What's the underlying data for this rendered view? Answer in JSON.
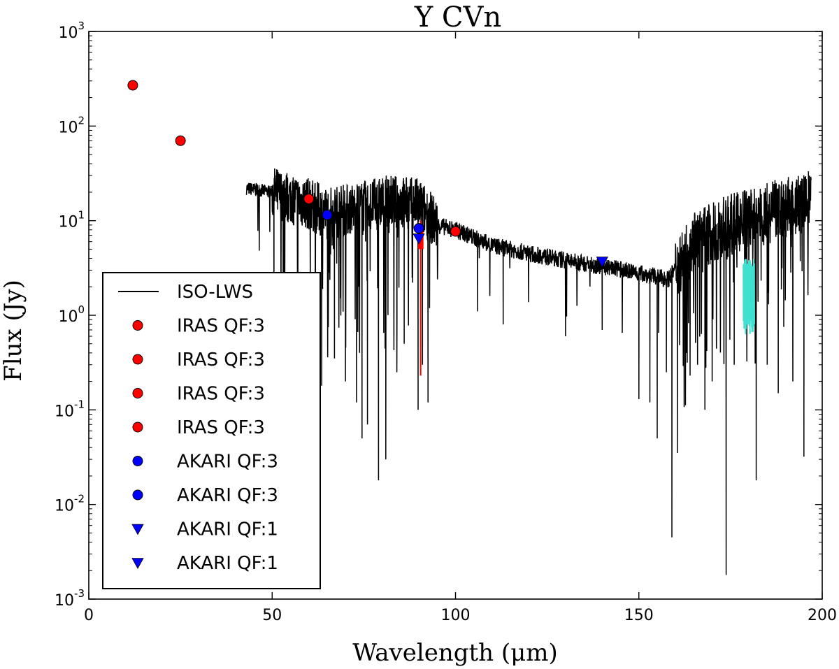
{
  "chart_data": {
    "type": "scatter",
    "title": "Y CVn",
    "xlabel": "Wavelength (μm)",
    "ylabel": "Flux (Jy)",
    "xlim": [
      0,
      200
    ],
    "ylim": [
      0.001,
      1000
    ],
    "yscale": "log",
    "grid": false,
    "legend_position": "lower-left",
    "x_ticks": [
      "0",
      "50",
      "100",
      "150",
      "200"
    ],
    "y_ticks": [
      {
        "base": "10",
        "exp": "-3"
      },
      {
        "base": "10",
        "exp": "-2"
      },
      {
        "base": "10",
        "exp": "-1"
      },
      {
        "base": "10",
        "exp": "0"
      },
      {
        "base": "10",
        "exp": "1"
      },
      {
        "base": "10",
        "exp": "2"
      },
      {
        "base": "10",
        "exp": "3"
      }
    ],
    "colors": {
      "iras": "#ff0000",
      "akari": "#0000ff",
      "spectrum": "#000000",
      "highlight": "#40e0d0"
    },
    "spectrum": {
      "name": "ISO-LWS",
      "x_range": [
        43,
        197
      ],
      "envelope": [
        [
          43,
          22
        ],
        [
          50,
          20
        ],
        [
          60,
          15
        ],
        [
          65,
          12
        ],
        [
          75,
          14
        ],
        [
          82,
          16
        ],
        [
          90,
          15
        ],
        [
          95,
          9
        ],
        [
          100,
          8
        ],
        [
          110,
          5.5
        ],
        [
          120,
          4.5
        ],
        [
          130,
          3.8
        ],
        [
          140,
          3.3
        ],
        [
          150,
          2.8
        ],
        [
          158,
          2.4
        ],
        [
          165,
          6
        ],
        [
          175,
          9
        ],
        [
          185,
          12
        ],
        [
          197,
          16
        ]
      ],
      "dips": [
        {
          "x": 50.5,
          "y": 0.35
        },
        {
          "x": 53,
          "y": 0.5
        },
        {
          "x": 57,
          "y": 0.3
        },
        {
          "x": 63.5,
          "y": 0.18
        },
        {
          "x": 67,
          "y": 0.35
        },
        {
          "x": 70,
          "y": 0.2
        },
        {
          "x": 73,
          "y": 0.12
        },
        {
          "x": 74.5,
          "y": 0.05
        },
        {
          "x": 76,
          "y": 0.07
        },
        {
          "x": 79,
          "y": 0.018
        },
        {
          "x": 81,
          "y": 0.03
        },
        {
          "x": 84,
          "y": 0.25
        },
        {
          "x": 86,
          "y": 0.5
        },
        {
          "x": 89.8,
          "y": 0.1
        },
        {
          "x": 91,
          "y": 0.3
        },
        {
          "x": 92.5,
          "y": 0.12
        },
        {
          "x": 106,
          "y": 1.1
        },
        {
          "x": 113,
          "y": 0.8
        },
        {
          "x": 130,
          "y": 0.6
        },
        {
          "x": 140,
          "y": 0.7
        },
        {
          "x": 150,
          "y": 0.13
        },
        {
          "x": 153,
          "y": 0.12
        },
        {
          "x": 155,
          "y": 0.05
        },
        {
          "x": 157.5,
          "y": 0.25
        },
        {
          "x": 159,
          "y": 0.0045
        },
        {
          "x": 160.5,
          "y": 0.035
        },
        {
          "x": 163,
          "y": 0.4
        },
        {
          "x": 166,
          "y": 0.3
        },
        {
          "x": 168,
          "y": 0.1
        },
        {
          "x": 170,
          "y": 0.2
        },
        {
          "x": 173.8,
          "y": 0.0018
        },
        {
          "x": 176,
          "y": 0.3
        },
        {
          "x": 182,
          "y": 0.018
        },
        {
          "x": 185,
          "y": 0.3
        },
        {
          "x": 188,
          "y": 0.15
        },
        {
          "x": 192,
          "y": 0.2
        },
        {
          "x": 195,
          "y": 0.032
        }
      ],
      "highlight_band": {
        "x": [
          178.5,
          181.5
        ],
        "y": [
          0.3,
          4
        ]
      }
    },
    "series": [
      {
        "name": "IRAS QF:3",
        "marker": "circle",
        "color": "#ff0000",
        "x": 12,
        "y": 270
      },
      {
        "name": "IRAS QF:3",
        "marker": "circle",
        "color": "#ff0000",
        "x": 25,
        "y": 70
      },
      {
        "name": "IRAS QF:3",
        "marker": "circle",
        "color": "#ff0000",
        "x": 60,
        "y": 17
      },
      {
        "name": "IRAS QF:3",
        "marker": "circle",
        "color": "#ff0000",
        "x": 100,
        "y": 7.7
      },
      {
        "name": "AKARI QF:3",
        "marker": "circle",
        "color": "#0000ff",
        "x": 65,
        "y": 11.5
      },
      {
        "name": "AKARI QF:3",
        "marker": "circle",
        "color": "#0000ff",
        "x": 90,
        "y": 8.3
      },
      {
        "name": "AKARI QF:1",
        "marker": "triangle-down",
        "color": "#0000ff",
        "x": 90,
        "y": 6.5
      },
      {
        "name": "AKARI QF:1",
        "marker": "triangle-down",
        "color": "#0000ff",
        "x": 140,
        "y": 3.7
      }
    ],
    "error_bar": {
      "x": 90.5,
      "y_low": 0.23,
      "y_high": 10
    },
    "legend": [
      {
        "label": "ISO-LWS",
        "marker": "line",
        "color": "#000000"
      },
      {
        "label": "IRAS QF:3",
        "marker": "circle",
        "color": "#ff0000"
      },
      {
        "label": "IRAS QF:3",
        "marker": "circle",
        "color": "#ff0000"
      },
      {
        "label": "IRAS QF:3",
        "marker": "circle",
        "color": "#ff0000"
      },
      {
        "label": "IRAS QF:3",
        "marker": "circle",
        "color": "#ff0000"
      },
      {
        "label": "AKARI QF:3",
        "marker": "circle",
        "color": "#0000ff"
      },
      {
        "label": "AKARI QF:3",
        "marker": "circle",
        "color": "#0000ff"
      },
      {
        "label": "AKARI QF:1",
        "marker": "triangle-down",
        "color": "#0000ff"
      },
      {
        "label": "AKARI QF:1",
        "marker": "triangle-down",
        "color": "#0000ff"
      }
    ]
  }
}
